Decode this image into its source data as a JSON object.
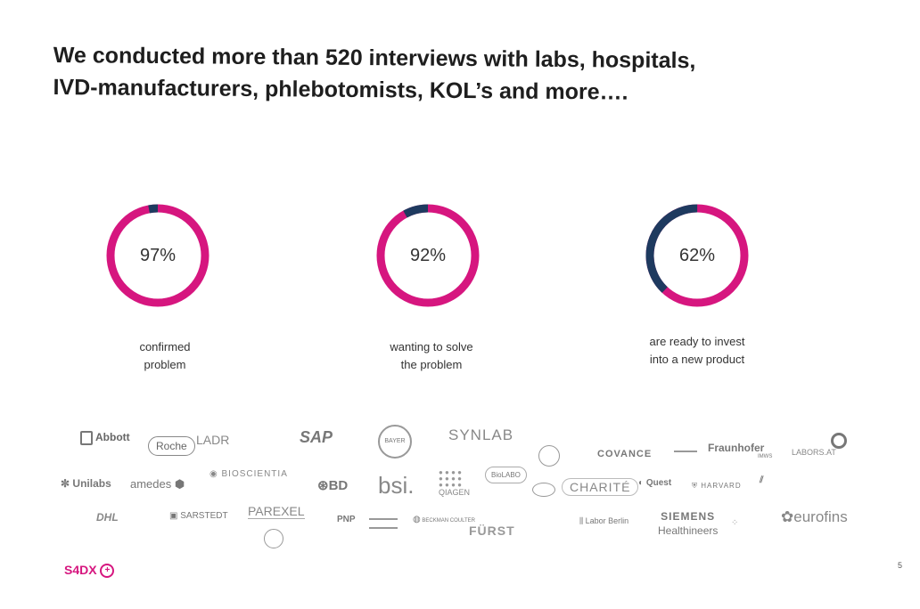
{
  "title": {
    "line1": "We conducted more than 520 interviews with labs, hospitals,",
    "line2": "IVD-manufacturers, phlebotomists, KOL’s and more…."
  },
  "colors": {
    "accent": "#d6167f",
    "dark": "#1e3a5f",
    "track": "#d6167f"
  },
  "stats": [
    {
      "value": 97,
      "label": "97%",
      "caption_l1": "confirmed",
      "caption_l2": "problem"
    },
    {
      "value": 92,
      "label": "92%",
      "caption_l1": "wanting to solve",
      "caption_l2": "the problem"
    },
    {
      "value": 62,
      "label": "62%",
      "caption_l1": "are ready to invest",
      "caption_l2": "into a new product"
    }
  ],
  "logos": {
    "abbott": "Abbott",
    "roche": "Roche",
    "ladr": "LADR",
    "sap": "SAP",
    "bayer": "BAYER",
    "synlab": "SYNLAB",
    "covance": "COVANCE",
    "fraunhofer": "Fraunhofer",
    "fraunhofer_sub": "IMWS",
    "labors": "LABORS.AT",
    "unilabs": "Unilabs",
    "amedes": "amedes",
    "bioscientia": "BIOSCIENTIA",
    "bd": "BD",
    "bsi": "bsi.",
    "qiagen": "QIAGEN",
    "biolabo": "BioLABO",
    "charite": "CHARITÉ",
    "quest": "Quest",
    "harvard": "HARVARD",
    "dhl": "DHL",
    "sarstedt": "SARSTEDT",
    "parexel": "PAREXEL",
    "pnp": "PNP",
    "beckman": "BECKMAN COULTER",
    "furst": "FÜRST",
    "labor_berlin": "Labor Berlin",
    "siemens": "SIEMENS",
    "healthineers": "Healthineers",
    "eurofins": "eurofins"
  },
  "footer": {
    "brand": "S4DX",
    "page": "5"
  }
}
